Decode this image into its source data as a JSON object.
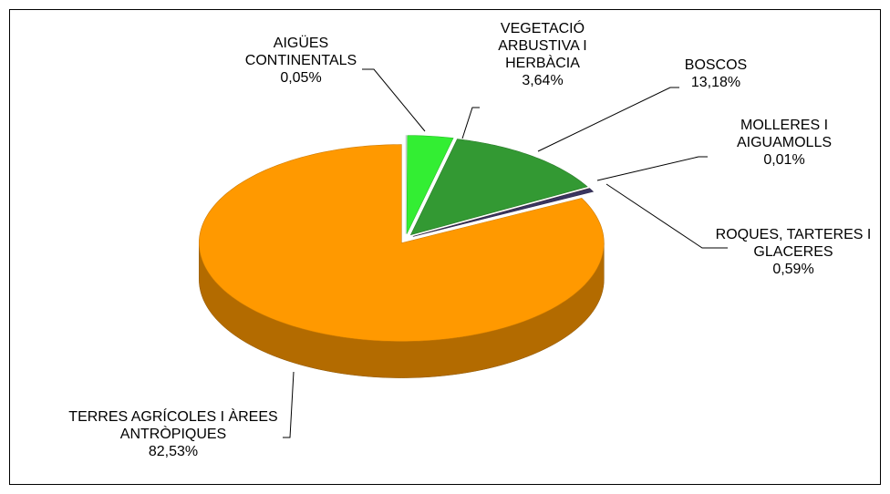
{
  "chart_data": {
    "type": "pie",
    "categories": [
      "AIGÜES CONTINENTALS",
      "VEGETACIÓ ARBUSTIVA I HERBÀCIA",
      "BOSCOS",
      "MOLLERES I AIGUAMOLLS",
      "ROQUES, TARTERES I GLACERES",
      "TERRES AGRÍCOLES I ÀREES ANTRÒPIQUES"
    ],
    "values": [
      0.05,
      3.64,
      13.18,
      0.01,
      0.59,
      82.53
    ],
    "value_labels": [
      "0,05%",
      "3,64%",
      "13,18%",
      "0,01%",
      "0,59%",
      "82,53%"
    ],
    "colors": [
      "#f4fbff",
      "#33ee33",
      "#339933",
      "#7a3b12",
      "#3a3560",
      "#ff9900"
    ]
  }
}
